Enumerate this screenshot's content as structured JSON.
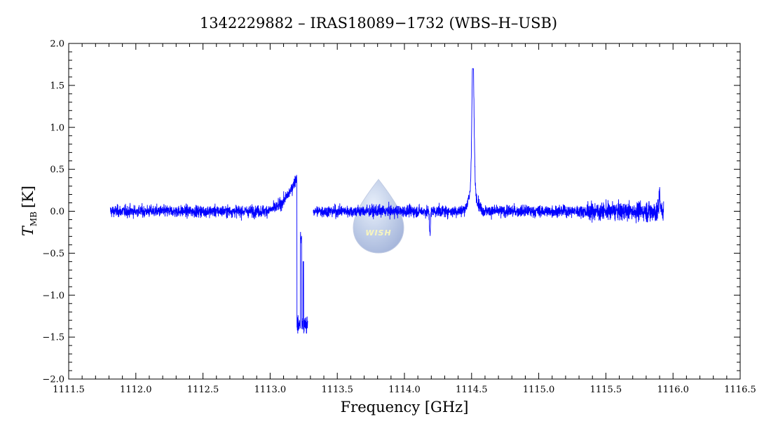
{
  "chart_data": {
    "type": "line",
    "title": "1342229882 – IRAS18089−1732 (WBS–H–USB)",
    "xlabel": "Frequency [GHz]",
    "ylabel_symbol": "T",
    "ylabel_subscript": "MB",
    "ylabel_unit": "[K]",
    "xlim": [
      1111.5,
      1116.5
    ],
    "ylim": [
      -2.0,
      2.0
    ],
    "x_ticks": [
      "1111.5",
      "1112.0",
      "1112.5",
      "1113.0",
      "1113.5",
      "1114.0",
      "1114.5",
      "1115.0",
      "1115.5",
      "1116.0",
      "1116.5"
    ],
    "y_ticks": [
      "2.0",
      "1.5",
      "1.0",
      "0.5",
      "0.0",
      "−0.5",
      "−1.0",
      "−1.5",
      "−2.0"
    ],
    "series_color": "#0000ff",
    "x_range_data": [
      1111.81,
      1115.93
    ],
    "noise_rms": 0.06,
    "features": [
      {
        "kind": "wing",
        "x": 1113.18,
        "y": 0.42
      },
      {
        "kind": "absorption",
        "x": 1113.21,
        "y": -1.45
      },
      {
        "kind": "absorption",
        "x": 1113.27,
        "y": -1.5
      },
      {
        "kind": "gap",
        "x": [
          1113.28,
          1113.32
        ]
      },
      {
        "kind": "dip",
        "x": 1114.19,
        "y": -0.33
      },
      {
        "kind": "emission",
        "x": 1114.51,
        "y": 1.67
      },
      {
        "kind": "spike",
        "x": 1115.9,
        "y": 0.45
      }
    ],
    "grid": false,
    "legend": "none"
  },
  "watermark": {
    "text": "WISH"
  }
}
